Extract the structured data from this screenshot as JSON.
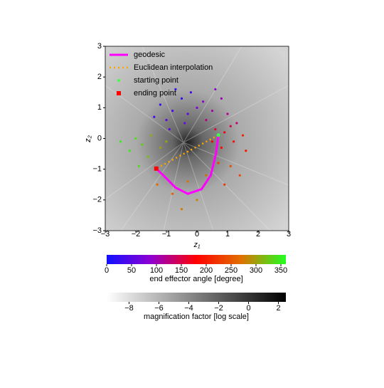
{
  "chart_data": {
    "type": "scatter",
    "xlabel": "z₁",
    "ylabel": "z₂",
    "xlim": [
      -3,
      3
    ],
    "ylim": [
      -3,
      3
    ],
    "xticks": [
      {
        "value": -3,
        "label": "−3"
      },
      {
        "value": -2,
        "label": "−2"
      },
      {
        "value": -1,
        "label": "−1"
      },
      0,
      1,
      2,
      3
    ],
    "yticks": [
      {
        "value": -3,
        "label": "−3"
      },
      {
        "value": -2,
        "label": "−2"
      },
      {
        "value": -1,
        "label": "−1"
      },
      0,
      1,
      2,
      3
    ],
    "legend": "upper left",
    "series": [
      {
        "name": "geodesic",
        "color": "#ff00ff",
        "style": "line",
        "x": [
          0.7,
          0.62,
          0.45,
          0.15,
          -0.3,
          -0.7,
          -1.0,
          -1.33
        ],
        "y": [
          0.11,
          -0.5,
          -1.2,
          -1.65,
          -1.8,
          -1.6,
          -1.3,
          -0.98
        ]
      },
      {
        "name": "Euclidean interpolation",
        "color": "#ffa500",
        "style": "dotted",
        "x": [
          0.7,
          -1.33
        ],
        "y": [
          0.11,
          -0.98
        ]
      },
      {
        "name": "starting point",
        "color": "#40ff40",
        "style": "dot",
        "x": [
          0.7
        ],
        "y": [
          0.11
        ]
      },
      {
        "name": "ending point",
        "color": "#ff0000",
        "style": "square",
        "x": [
          -1.33
        ],
        "y": [
          -0.98
        ]
      }
    ],
    "points": {
      "x": [
        -1.2,
        -0.8,
        -0.5,
        -1.0,
        -0.3,
        -0.7,
        -1.4,
        -0.2,
        -0.9,
        -0.4,
        0.2,
        0.5,
        0.8,
        0.3,
        1.0,
        0.6,
        1.3,
        0.0,
        0.9,
        1.2,
        0.6,
        1.5,
        0.8,
        1.1,
        1.6,
        0.5,
        0.7,
        1.1,
        0.3,
        -0.3,
        -0.8,
        0.0,
        -1.3,
        0.9,
        -0.5,
        1.4,
        -1.8,
        -1.5,
        -2.2,
        -1.2,
        -2.0,
        -1.6,
        -2.5,
        -1.0,
        -1.9
      ],
      "y": [
        1.1,
        0.9,
        1.3,
        0.6,
        0.8,
        1.6,
        0.7,
        1.5,
        0.3,
        0.5,
        1.2,
        0.9,
        1.3,
        0.6,
        0.8,
        1.6,
        0.5,
        1.0,
        0.2,
        -0.1,
        0.3,
        0.1,
        -0.3,
        0.4,
        -0.4,
        -0.1,
        -0.8,
        -0.9,
        -1.2,
        -1.4,
        -1.8,
        -2.0,
        -1.5,
        -1.5,
        -2.3,
        -1.2,
        -0.2,
        0.1,
        -0.4,
        -0.3,
        0.0,
        -0.6,
        -0.1,
        -0.1,
        -0.9
      ],
      "angle": [
        30,
        45,
        20,
        55,
        60,
        25,
        40,
        35,
        50,
        65,
        90,
        110,
        100,
        125,
        120,
        85,
        130,
        80,
        170,
        190,
        160,
        200,
        185,
        150,
        195,
        175,
        230,
        245,
        260,
        270,
        255,
        280,
        265,
        225,
        275,
        240,
        330,
        310,
        345,
        300,
        340,
        320,
        350,
        305,
        335
      ]
    },
    "colorbars": [
      {
        "label": "end effector angle [degree]",
        "lim": [
          0,
          360
        ],
        "ticks": [
          0,
          50,
          100,
          150,
          200,
          250,
          300,
          350
        ],
        "colors": [
          "#1010ff",
          "#9000d0",
          "#ff0000",
          "#e07000",
          "#20ff20"
        ]
      },
      {
        "label": "magnification factor [log scale]",
        "lim": [
          -9.5,
          2.5
        ],
        "ticks": [
          {
            "value": -8,
            "label": "−8"
          },
          {
            "value": -6,
            "label": "−6"
          },
          {
            "value": -4,
            "label": "−4"
          },
          {
            "value": -2,
            "label": "−2"
          },
          0,
          2
        ],
        "colors": [
          "#ffffff",
          "#000000"
        ]
      }
    ]
  }
}
